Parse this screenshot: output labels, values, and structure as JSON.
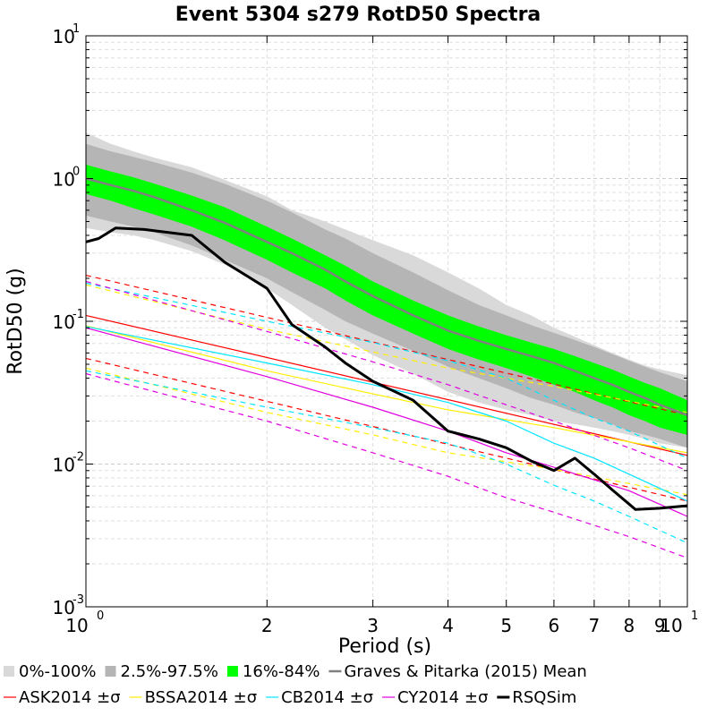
{
  "chart_data": {
    "type": "line",
    "title": "Event 5304 s279 RotD50 Spectra",
    "xlabel": "Period (s)",
    "ylabel": "RotD50 (g)",
    "x_scale": "log",
    "y_scale": "log",
    "xlim": [
      1,
      10
    ],
    "ylim": [
      0.001,
      10
    ],
    "grid": true,
    "x_tick_labels": [
      {
        "value": 1,
        "base": "10",
        "exp": "0"
      },
      {
        "value": 2,
        "label": "2"
      },
      {
        "value": 3,
        "label": "3"
      },
      {
        "value": 4,
        "label": "4"
      },
      {
        "value": 5,
        "label": "5"
      },
      {
        "value": 6,
        "label": "6"
      },
      {
        "value": 7,
        "label": "7"
      },
      {
        "value": 8,
        "label": "8"
      },
      {
        "value": 9,
        "label": "9"
      },
      {
        "value": 10,
        "base": "10",
        "exp": "1"
      }
    ],
    "y_tick_labels": [
      {
        "value": 0.001,
        "base": "10",
        "exp": "-3"
      },
      {
        "value": 0.01,
        "base": "10",
        "exp": "-2"
      },
      {
        "value": 0.1,
        "base": "10",
        "exp": "-1"
      },
      {
        "value": 1,
        "base": "10",
        "exp": "0"
      },
      {
        "value": 10,
        "base": "10",
        "exp": "1"
      }
    ],
    "periods": [
      1,
      1.1,
      1.2,
      1.3,
      1.5,
      1.7,
      2,
      2.2,
      2.5,
      2.7,
      3,
      3.5,
      4,
      4.5,
      5,
      5.5,
      6,
      6.5,
      7,
      7.5,
      8,
      8.5,
      9,
      10
    ],
    "bands": [
      {
        "name": "0%-100%",
        "color": "#d9d9d9",
        "low": [
          0.45,
          0.42,
          0.4,
          0.37,
          0.31,
          0.25,
          0.17,
          0.13,
          0.09,
          0.075,
          0.058,
          0.043,
          0.032,
          0.027,
          0.024,
          0.022,
          0.02,
          0.019,
          0.018,
          0.017,
          0.016,
          0.015,
          0.014,
          0.013
        ],
        "high": [
          2.1,
          1.75,
          1.55,
          1.4,
          1.2,
          0.98,
          0.75,
          0.6,
          0.5,
          0.44,
          0.37,
          0.29,
          0.22,
          0.17,
          0.13,
          0.11,
          0.09,
          0.078,
          0.068,
          0.06,
          0.054,
          0.049,
          0.046,
          0.042
        ]
      },
      {
        "name": "2.5%-97.5%",
        "color": "#b5b5b5",
        "low": [
          0.55,
          0.5,
          0.46,
          0.42,
          0.34,
          0.27,
          0.2,
          0.16,
          0.12,
          0.1,
          0.082,
          0.062,
          0.048,
          0.04,
          0.034,
          0.029,
          0.026,
          0.023,
          0.021,
          0.019,
          0.017,
          0.016,
          0.015,
          0.013
        ],
        "high": [
          1.75,
          1.55,
          1.42,
          1.3,
          1.1,
          0.92,
          0.7,
          0.58,
          0.44,
          0.38,
          0.3,
          0.22,
          0.165,
          0.13,
          0.11,
          0.094,
          0.083,
          0.074,
          0.066,
          0.059,
          0.053,
          0.048,
          0.044,
          0.038
        ]
      },
      {
        "name": "16%-84%",
        "color": "#00ff00",
        "low": [
          0.78,
          0.7,
          0.62,
          0.56,
          0.46,
          0.37,
          0.27,
          0.22,
          0.17,
          0.14,
          0.11,
          0.082,
          0.064,
          0.054,
          0.047,
          0.041,
          0.036,
          0.032,
          0.028,
          0.025,
          0.022,
          0.02,
          0.018,
          0.016
        ],
        "high": [
          1.25,
          1.12,
          1.02,
          0.92,
          0.76,
          0.63,
          0.46,
          0.38,
          0.29,
          0.245,
          0.19,
          0.14,
          0.11,
          0.092,
          0.08,
          0.071,
          0.064,
          0.057,
          0.051,
          0.046,
          0.041,
          0.037,
          0.034,
          0.028
        ]
      }
    ],
    "series": [
      {
        "name": "Graves & Pitarka (2015) Mean",
        "color": "#808080",
        "width": 2.5,
        "x": [
          1,
          1.1,
          1.2,
          1.3,
          1.5,
          1.7,
          2,
          2.2,
          2.5,
          2.7,
          3,
          3.5,
          4,
          4.5,
          5,
          5.5,
          6,
          6.5,
          7,
          7.5,
          8,
          8.5,
          9,
          10
        ],
        "y": [
          1.0,
          0.9,
          0.82,
          0.74,
          0.6,
          0.49,
          0.36,
          0.3,
          0.23,
          0.19,
          0.15,
          0.11,
          0.086,
          0.073,
          0.064,
          0.057,
          0.051,
          0.045,
          0.04,
          0.036,
          0.032,
          0.029,
          0.026,
          0.022
        ]
      },
      {
        "name": "ASK2014 ±σ",
        "color": "#ff0000",
        "width": 1.2,
        "x": [
          1,
          10
        ],
        "y": [
          0.11,
          0.0115
        ],
        "bounds": [
          {
            "x": [
              1,
              10
            ],
            "y": [
              0.21,
              0.022
            ]
          },
          {
            "x": [
              1,
              10
            ],
            "y": [
              0.055,
              0.0055
            ]
          }
        ]
      },
      {
        "name": "BSSA2014 ±σ",
        "color": "#ffee00",
        "width": 1.2,
        "x": [
          1,
          2,
          3,
          4,
          6,
          10
        ],
        "y": [
          0.093,
          0.045,
          0.031,
          0.024,
          0.018,
          0.012
        ],
        "bounds": [
          {
            "x": [
              1,
              2,
              3,
              4,
              6,
              10
            ],
            "y": [
              0.18,
              0.088,
              0.061,
              0.047,
              0.035,
              0.023
            ]
          },
          {
            "x": [
              1,
              2,
              3,
              4,
              6,
              10
            ],
            "y": [
              0.047,
              0.023,
              0.016,
              0.012,
              0.0092,
              0.0061
            ]
          }
        ]
      },
      {
        "name": "CB2014 ±σ",
        "color": "#00e5ff",
        "width": 1.2,
        "x": [
          1,
          2,
          3,
          4,
          5,
          6,
          7,
          8,
          10
        ],
        "y": [
          0.092,
          0.051,
          0.036,
          0.027,
          0.02,
          0.014,
          0.011,
          0.0085,
          0.0055
        ],
        "bounds": [
          {
            "x": [
              1,
              2,
              3,
              4,
              5,
              6,
              7,
              8,
              10
            ],
            "y": [
              0.185,
              0.1,
              0.071,
              0.053,
              0.04,
              0.028,
              0.021,
              0.017,
              0.011
            ]
          },
          {
            "x": [
              1,
              2,
              3,
              4,
              5,
              6,
              7,
              8,
              10
            ],
            "y": [
              0.045,
              0.025,
              0.018,
              0.014,
              0.01,
              0.0071,
              0.0055,
              0.0043,
              0.0028
            ]
          }
        ]
      },
      {
        "name": "CY2014 ±σ",
        "color": "#e000e0",
        "width": 1.2,
        "x": [
          1,
          2,
          3,
          4,
          5,
          6,
          8,
          10
        ],
        "y": [
          0.09,
          0.041,
          0.025,
          0.017,
          0.012,
          0.0095,
          0.0065,
          0.0043
        ],
        "bounds": [
          {
            "x": [
              1,
              2,
              3,
              4,
              5,
              6,
              8,
              10
            ],
            "y": [
              0.19,
              0.085,
              0.052,
              0.036,
              0.026,
              0.02,
              0.013,
              0.009
            ]
          },
          {
            "x": [
              1,
              2,
              3,
              4,
              5,
              6,
              8,
              10
            ],
            "y": [
              0.043,
              0.02,
              0.012,
              0.0082,
              0.0058,
              0.0046,
              0.0031,
              0.0022
            ]
          }
        ]
      },
      {
        "name": "RSQSim",
        "color": "#000000",
        "width": 3,
        "x": [
          1,
          1.05,
          1.12,
          1.25,
          1.5,
          1.7,
          2,
          2.2,
          2.5,
          2.7,
          3,
          3.5,
          4,
          4.5,
          5,
          5.5,
          6,
          6.5,
          7,
          7.5,
          8.2,
          9,
          10
        ],
        "y": [
          0.36,
          0.38,
          0.45,
          0.44,
          0.4,
          0.26,
          0.17,
          0.095,
          0.066,
          0.051,
          0.038,
          0.028,
          0.017,
          0.015,
          0.013,
          0.0105,
          0.009,
          0.011,
          0.0085,
          0.0066,
          0.0048,
          0.0049,
          0.0051
        ]
      }
    ],
    "legend": {
      "placement": "bottom",
      "rows": [
        [
          {
            "label": "0%-100%",
            "kind": "square",
            "color": "#d9d9d9"
          },
          {
            "label": "2.5%-97.5%",
            "kind": "square",
            "color": "#b5b5b5"
          },
          {
            "label": "16%-84%",
            "kind": "square",
            "color": "#00ff00"
          },
          {
            "label": "Graves & Pitarka (2015) Mean",
            "kind": "line",
            "color": "#808080",
            "width": 2.5
          }
        ],
        [
          {
            "label": "ASK2014 ±σ",
            "kind": "line",
            "color": "#ff0000",
            "width": 1.2
          },
          {
            "label": "BSSA2014 ±σ",
            "kind": "line",
            "color": "#ffee00",
            "width": 1.2
          },
          {
            "label": "CB2014 ±σ",
            "kind": "line",
            "color": "#00e5ff",
            "width": 1.2
          },
          {
            "label": "CY2014 ±σ",
            "kind": "line",
            "color": "#e000e0",
            "width": 1.2
          },
          {
            "label": "RSQSim",
            "kind": "line",
            "color": "#000000",
            "width": 3
          }
        ]
      ]
    }
  }
}
